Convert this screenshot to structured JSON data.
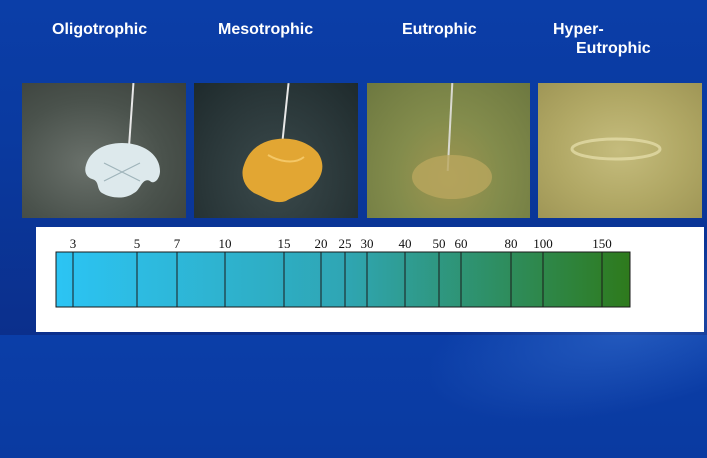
{
  "labels": {
    "oligotrophic": "Oligotrophic",
    "mesotrophic": "Mesotrophic",
    "eutrophic": "Eutrophic",
    "hyper_line1": "Hyper-",
    "hyper_line2": "Eutrophic"
  },
  "scale": {
    "ticks": [
      "3",
      "5",
      "7",
      "10",
      "15",
      "20",
      "25",
      "30",
      "40",
      "50",
      "60",
      "80",
      "100",
      "150"
    ],
    "colors": {
      "start": "#2cc4f4",
      "end": "#2e7a1c"
    }
  },
  "photos": [
    {
      "name": "oligotrophic-photo",
      "water": "#4d5650",
      "disk": "#d8e6ea"
    },
    {
      "name": "mesotrophic-photo",
      "water": "#2b3a3c",
      "disk": "#e6a830"
    },
    {
      "name": "eutrophic-photo",
      "water": "#7f8a48",
      "disk": "#b8a25a"
    },
    {
      "name": "hypereutrophic-photo",
      "water": "#b6ad6a",
      "disk": "#c9bf7e"
    }
  ]
}
